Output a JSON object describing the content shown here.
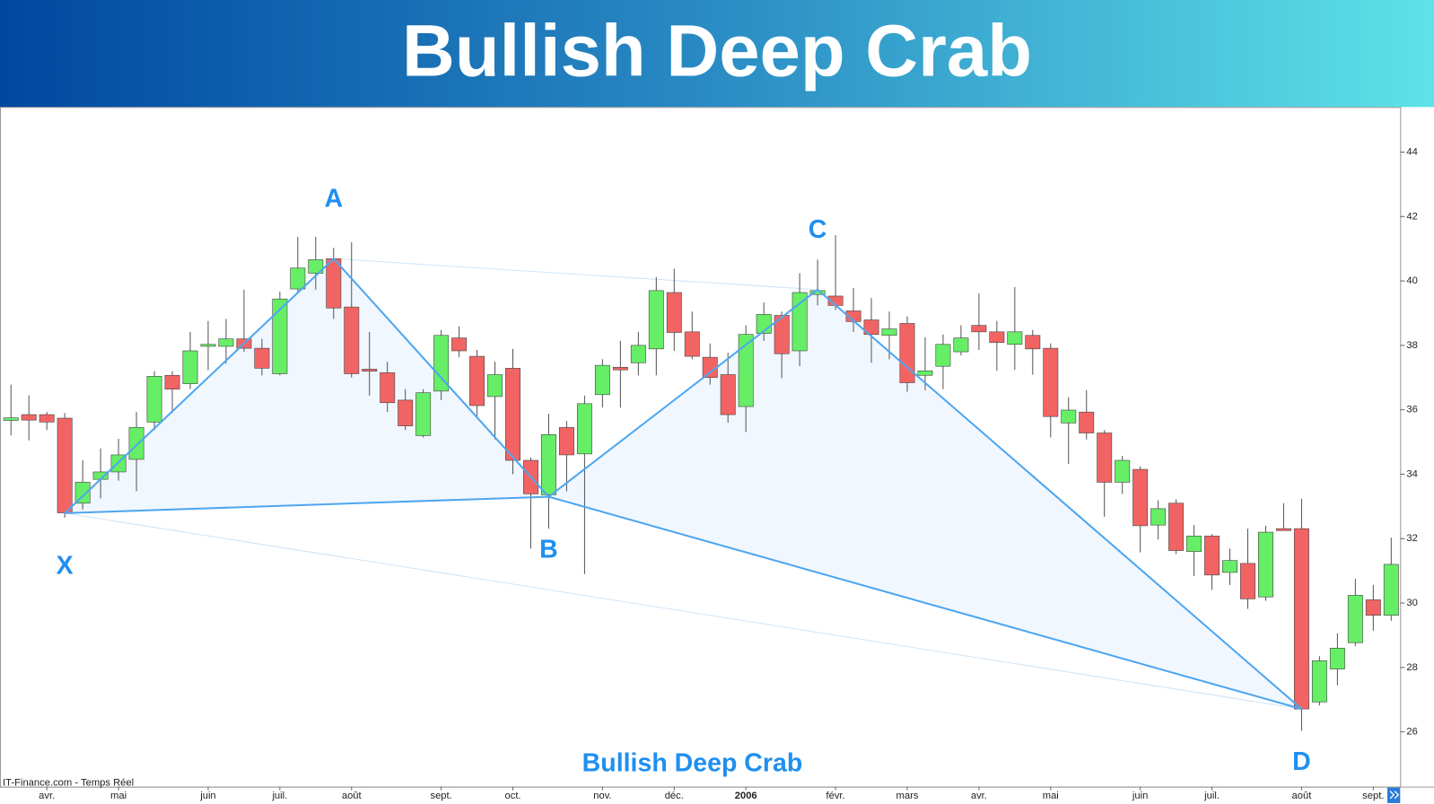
{
  "header": {
    "title": "Bullish Deep Crab"
  },
  "chart_data": {
    "type": "candlestick",
    "annotation": "Bullish Deep Crab",
    "source": "IT-Finance.com - Temps Réel",
    "up_color": "#66ee66",
    "down_color": "#f26464",
    "categories": [
      null,
      null,
      "avr.",
      null,
      null,
      null,
      "mai",
      null,
      null,
      null,
      null,
      "juin",
      null,
      null,
      null,
      "juil.",
      null,
      null,
      null,
      "août",
      null,
      null,
      null,
      null,
      "sept.",
      null,
      null,
      null,
      "oct.",
      null,
      null,
      null,
      null,
      "nov.",
      null,
      null,
      null,
      "déc.",
      null,
      null,
      null,
      "2006",
      null,
      null,
      null,
      null,
      "févr.",
      null,
      null,
      null,
      "mars",
      null,
      null,
      null,
      "avr.",
      null,
      null,
      null,
      "mai",
      null,
      null,
      null,
      null,
      "juin",
      null,
      null,
      null,
      "juil.",
      null,
      null,
      null,
      null,
      "août",
      null,
      null,
      null,
      "sept.",
      null
    ],
    "open": [
      35.67,
      35.85,
      35.85,
      35.74,
      33.1,
      33.84,
      34.07,
      34.46,
      35.62,
      37.07,
      36.81,
      37.97,
      37.97,
      38.2,
      37.91,
      37.12,
      39.75,
      40.24,
      40.69,
      39.19,
      37.26,
      37.15,
      36.3,
      35.2,
      36.58,
      38.23,
      37.66,
      36.41,
      37.29,
      34.43,
      33.36,
      35.45,
      34.63,
      36.47,
      37.32,
      37.46,
      37.89,
      39.64,
      38.42,
      37.63,
      37.09,
      36.1,
      38.37,
      38.93,
      37.83,
      39.58,
      39.53,
      39.07,
      38.79,
      38.31,
      38.68,
      37.07,
      37.35,
      37.8,
      38.62,
      38.42,
      38.03,
      38.31,
      37.91,
      35.59,
      35.93,
      35.28,
      33.75,
      34.15,
      32.42,
      33.1,
      31.6,
      32.08,
      30.95,
      31.23,
      30.19,
      32.31,
      32.31,
      26.93,
      27.95,
      28.77,
      30.1,
      29.62
    ],
    "high": [
      36.78,
      36.45,
      35.93,
      35.9,
      34.43,
      34.8,
      35.1,
      35.93,
      37.2,
      37.2,
      38.42,
      38.76,
      38.82,
      39.73,
      38.2,
      39.67,
      41.37,
      41.37,
      41.03,
      41.2,
      38.42,
      37.49,
      36.64,
      36.64,
      38.48,
      38.59,
      37.86,
      37.49,
      37.89,
      34.52,
      35.88,
      35.65,
      36.44,
      37.57,
      38.14,
      38.42,
      40.12,
      40.38,
      39.05,
      38.06,
      37.77,
      38.62,
      39.33,
      39.05,
      40.24,
      40.66,
      41.42,
      39.78,
      39.47,
      39.05,
      38.9,
      38.25,
      38.34,
      38.62,
      39.61,
      38.76,
      39.81,
      38.48,
      38.06,
      36.39,
      36.61,
      35.37,
      34.57,
      34.24,
      33.19,
      33.22,
      32.42,
      32.14,
      31.69,
      32.31,
      32.4,
      33.1,
      33.24,
      28.35,
      29.06,
      30.75,
      30.56,
      32.03
    ],
    "low": [
      35.2,
      35.05,
      35.37,
      32.65,
      32.9,
      33.25,
      33.8,
      33.47,
      35.37,
      35.9,
      36.64,
      37.23,
      37.43,
      37.8,
      37.07,
      37.07,
      39.6,
      39.73,
      38.82,
      37.0,
      36.44,
      35.93,
      35.37,
      35.14,
      36.3,
      37.63,
      35.79,
      35.08,
      34.0,
      31.69,
      32.31,
      33.47,
      30.9,
      36.07,
      36.07,
      37.07,
      37.07,
      37.83,
      37.57,
      36.78,
      35.6,
      35.31,
      38.14,
      36.98,
      37.35,
      39.24,
      39.1,
      38.42,
      37.46,
      37.57,
      36.56,
      36.61,
      36.64,
      37.69,
      37.86,
      37.21,
      37.24,
      37.09,
      35.14,
      34.32,
      35.08,
      32.68,
      33.39,
      31.57,
      31.97,
      31.52,
      30.84,
      30.41,
      30.56,
      29.82,
      30.07,
      32.25,
      26.03,
      26.82,
      27.44,
      28.66,
      29.14,
      29.45
    ],
    "close": [
      35.75,
      35.68,
      35.62,
      32.8,
      33.75,
      34.07,
      34.6,
      35.45,
      37.04,
      36.64,
      37.83,
      38.03,
      38.2,
      37.91,
      37.29,
      39.44,
      40.4,
      40.66,
      39.16,
      37.12,
      37.2,
      36.22,
      35.5,
      36.53,
      38.31,
      37.83,
      36.13,
      37.09,
      34.43,
      33.39,
      35.23,
      34.6,
      36.19,
      37.38,
      37.24,
      38.0,
      39.7,
      38.4,
      37.66,
      37.0,
      35.85,
      38.34,
      38.96,
      37.74,
      39.64,
      39.7,
      39.24,
      38.74,
      38.34,
      38.51,
      36.84,
      37.21,
      38.03,
      38.23,
      38.42,
      38.09,
      38.42,
      37.89,
      35.79,
      35.99,
      35.28,
      33.75,
      34.43,
      32.4,
      32.93,
      31.63,
      32.08,
      30.87,
      31.32,
      30.13,
      32.2,
      32.25,
      26.71,
      28.21,
      28.6,
      30.24,
      29.62,
      31.2
    ],
    "ylim": [
      24.3,
      45.4
    ],
    "yticks": [
      26,
      28,
      30,
      32,
      34,
      36,
      38,
      40,
      42,
      44
    ],
    "pattern": {
      "color": "#4da6f0",
      "points": [
        {
          "label": "X",
          "index": 3,
          "value": 32.79
        },
        {
          "label": "A",
          "index": 18,
          "value": 40.69
        },
        {
          "label": "B",
          "index": 30,
          "value": 33.3
        },
        {
          "label": "C",
          "index": 45,
          "value": 39.73
        },
        {
          "label": "D",
          "index": 72,
          "value": 26.71
        }
      ]
    }
  }
}
